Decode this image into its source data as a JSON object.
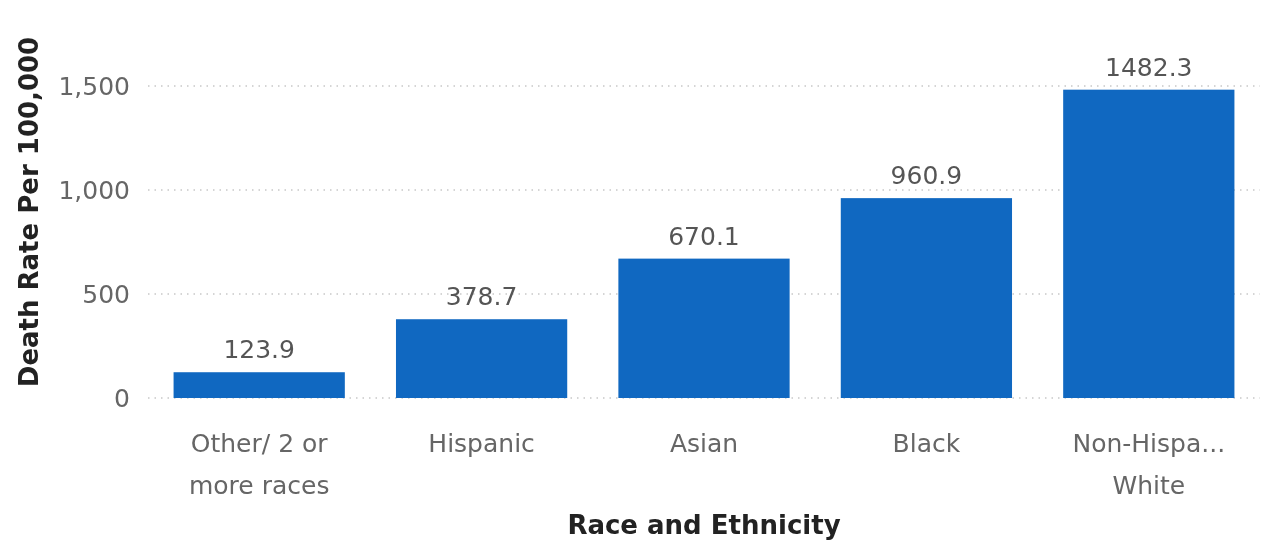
{
  "chart_data": {
    "type": "bar",
    "xlabel": "Race and Ethnicity",
    "ylabel": "Death Rate Per 100,000",
    "categories": [
      "Other/ 2 or more races",
      "Hispanic",
      "Asian",
      "Black",
      "Non-Hispa... White"
    ],
    "values": [
      123.9,
      378.7,
      670.1,
      960.9,
      1482.3
    ],
    "color": "#1068c1",
    "ylim": [
      0,
      1500
    ],
    "yticks": [
      {
        "value": 0,
        "label": "0"
      },
      {
        "value": 500,
        "label": "500"
      },
      {
        "value": 1000,
        "label": "1,000"
      },
      {
        "value": 1500,
        "label": "1,500"
      }
    ],
    "grid": "y",
    "data_labels": true
  }
}
